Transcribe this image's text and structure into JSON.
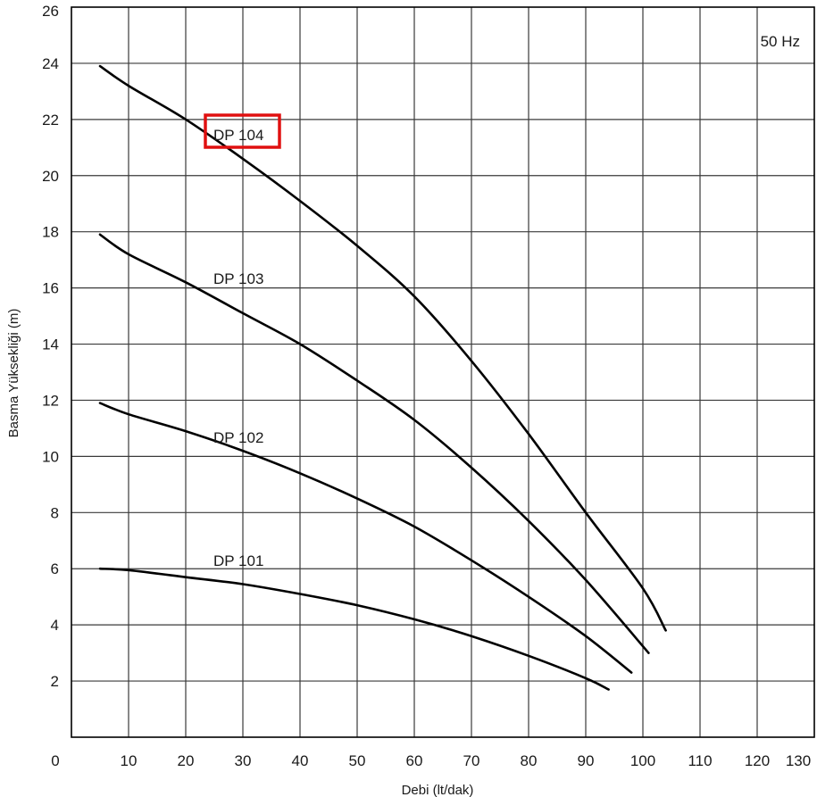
{
  "chart_data": {
    "type": "line",
    "xlabel": "Debi (lt/dak)",
    "ylabel": "Basma Yüksekliği (m)",
    "xlim": [
      0,
      130
    ],
    "ylim": [
      0,
      26
    ],
    "x_ticks": [
      0,
      10,
      20,
      30,
      40,
      50,
      60,
      70,
      80,
      90,
      100,
      110,
      120,
      130
    ],
    "y_ticks": [
      2,
      4,
      6,
      8,
      10,
      12,
      14,
      16,
      18,
      20,
      22,
      24,
      26
    ],
    "grid": true,
    "annotation": "50 Hz",
    "highlighted_series": "DP 104",
    "series": [
      {
        "name": "DP 104",
        "x": [
          5,
          10,
          20,
          30,
          40,
          50,
          60,
          70,
          80,
          90,
          100,
          104
        ],
        "y": [
          23.9,
          23.2,
          22.0,
          20.6,
          19.1,
          17.5,
          15.7,
          13.4,
          10.8,
          8.0,
          5.3,
          3.8
        ]
      },
      {
        "name": "DP 103",
        "x": [
          5,
          10,
          20,
          30,
          40,
          50,
          60,
          70,
          80,
          90,
          101
        ],
        "y": [
          17.9,
          17.2,
          16.2,
          15.1,
          14.0,
          12.7,
          11.3,
          9.6,
          7.7,
          5.6,
          3.0
        ]
      },
      {
        "name": "DP 102",
        "x": [
          5,
          10,
          20,
          30,
          40,
          50,
          60,
          70,
          80,
          90,
          98
        ],
        "y": [
          11.9,
          11.5,
          10.9,
          10.2,
          9.4,
          8.5,
          7.5,
          6.3,
          5.0,
          3.6,
          2.3
        ]
      },
      {
        "name": "DP 101",
        "x": [
          5,
          10,
          20,
          30,
          40,
          50,
          60,
          70,
          80,
          90,
          94
        ],
        "y": [
          6.0,
          5.95,
          5.7,
          5.45,
          5.1,
          4.7,
          4.2,
          3.6,
          2.9,
          2.1,
          1.7
        ]
      }
    ]
  }
}
